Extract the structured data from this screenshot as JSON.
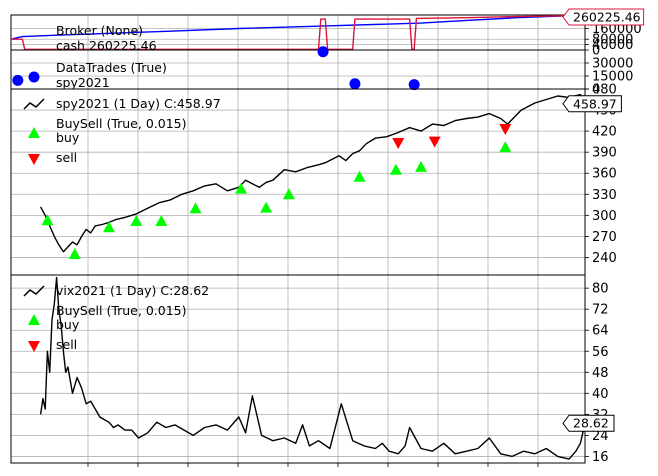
{
  "chart_data": [
    {
      "type": "line",
      "panel": "broker",
      "legend": [
        "Broker (None)",
        "cash 260225.46"
      ],
      "last_value_label": "260225.46",
      "ylim": [
        0,
        260225.46
      ],
      "yticks": [
        0,
        40000,
        80000,
        160000
      ],
      "ytick_labels": [
        "0",
        "40000",
        "80000",
        "160000"
      ],
      "series": [
        {
          "name": "Broker (None)",
          "color": "#0000ff",
          "x": [
            0,
            5,
            20,
            45,
            70,
            100,
            140,
            180,
            200,
            222,
            250,
            252
          ],
          "y": [
            80000,
            100000,
            110000,
            125000,
            140000,
            160000,
            180000,
            200000,
            220000,
            240000,
            258000,
            260225.46
          ]
        },
        {
          "name": "cash 260225.46",
          "color": "#dc143c",
          "x": [
            0,
            5,
            6,
            135,
            136,
            138,
            139,
            150,
            151,
            175,
            176,
            177,
            178,
            200,
            225,
            250,
            252
          ],
          "y": [
            80000,
            80000,
            5000,
            5000,
            230000,
            230000,
            5000,
            5000,
            230000,
            230000,
            5000,
            5000,
            235000,
            240000,
            250000,
            256000,
            260225.46
          ]
        }
      ]
    },
    {
      "type": "scatter",
      "panel": "datatrades",
      "legend": [
        "DataTrades (True)",
        "spy2021"
      ],
      "ylim": [
        0,
        45000
      ],
      "yticks": [
        0,
        15000,
        30000
      ],
      "ytick_labels": [
        "0",
        "15000",
        "30000"
      ],
      "series": [
        {
          "name": "DataTrades (True)",
          "color": "#0000ff",
          "x": [
            3,
            137,
            151,
            177
          ],
          "y": [
            10000,
            43000,
            6000,
            5000
          ]
        }
      ]
    },
    {
      "type": "line",
      "panel": "spy2021",
      "legend": [
        "spy2021 (1 Day) C:458.97",
        "BuySell (True, 0.015)",
        "buy",
        "sell"
      ],
      "last_value_label": "458.97",
      "ylim": [
        215,
        480
      ],
      "yticks": [
        240,
        270,
        300,
        330,
        360,
        390,
        420,
        450,
        480
      ],
      "ytick_labels": [
        "240",
        "270",
        "300",
        "330",
        "360",
        "390",
        "420",
        "450",
        "480"
      ],
      "series": [
        {
          "name": "spy2021 (1 Day) C:458.97",
          "color": "#000000",
          "x": [
            13,
            15,
            17,
            19,
            21,
            23,
            25,
            27,
            29,
            31,
            33,
            35,
            37,
            40,
            43,
            46,
            50,
            55,
            60,
            65,
            70,
            75,
            80,
            85,
            90,
            95,
            100,
            103,
            106,
            109,
            112,
            115,
            120,
            125,
            130,
            135,
            138,
            141,
            144,
            147,
            150,
            153,
            156,
            160,
            165,
            170,
            175,
            180,
            185,
            190,
            195,
            200,
            205,
            210,
            215,
            218,
            221,
            224,
            227,
            230,
            235,
            240,
            245,
            250,
            252
          ],
          "y": [
            312,
            300,
            285,
            270,
            258,
            248,
            255,
            262,
            258,
            270,
            280,
            275,
            285,
            287,
            290,
            294,
            297,
            302,
            310,
            318,
            322,
            330,
            335,
            342,
            345,
            335,
            340,
            350,
            345,
            340,
            347,
            350,
            365,
            362,
            368,
            372,
            375,
            380,
            385,
            378,
            388,
            392,
            402,
            410,
            412,
            418,
            425,
            420,
            430,
            428,
            435,
            438,
            440,
            445,
            438,
            430,
            440,
            450,
            455,
            460,
            465,
            470,
            468,
            472,
            458.97
          ]
        }
      ],
      "buy_markers": {
        "name": "buy",
        "color": "#00ff00",
        "x": [
          16,
          28,
          43,
          55,
          66,
          81,
          101,
          112,
          122,
          153,
          169,
          180,
          217
        ],
        "y": [
          293,
          245,
          283,
          292,
          292,
          310,
          338,
          311,
          330,
          355,
          365,
          369,
          397
        ]
      },
      "sell_markers": {
        "name": "sell",
        "color": "#ff0000",
        "x": [
          170,
          186,
          217
        ],
        "y": [
          403,
          405,
          423
        ]
      }
    },
    {
      "type": "line",
      "panel": "vix2021",
      "legend": [
        "vix2021 (1 Day) C:28.62",
        "BuySell (True, 0.015)",
        "buy",
        "sell"
      ],
      "last_value_label": "28.62",
      "ylim": [
        13.5,
        85
      ],
      "yticks": [
        16,
        24,
        32,
        40,
        48,
        56,
        64,
        72,
        80
      ],
      "ytick_labels": [
        "16",
        "24",
        "32",
        "40",
        "48",
        "56",
        "64",
        "72",
        "80"
      ],
      "series": [
        {
          "name": "vix2021 (1 Day) C:28.62",
          "color": "#000000",
          "x": [
            13,
            14,
            15,
            16,
            17,
            18,
            19,
            20,
            21,
            22,
            23,
            24,
            25,
            27,
            29,
            31,
            33,
            35,
            37,
            39,
            41,
            43,
            45,
            47,
            50,
            53,
            56,
            60,
            64,
            68,
            72,
            76,
            80,
            85,
            90,
            95,
            100,
            103,
            106,
            110,
            115,
            120,
            125,
            128,
            131,
            135,
            140,
            145,
            150,
            155,
            160,
            163,
            166,
            170,
            173,
            175,
            180,
            185,
            190,
            195,
            200,
            205,
            210,
            215,
            220,
            225,
            230,
            235,
            240,
            245,
            248,
            250,
            252
          ],
          "y": [
            32,
            38,
            34,
            56,
            48,
            68,
            74,
            84,
            72,
            66,
            56,
            48,
            50,
            40,
            46,
            42,
            36,
            37,
            34,
            31,
            30,
            29,
            27,
            28,
            26,
            26,
            23,
            25,
            29,
            27,
            28,
            26,
            24,
            27,
            28,
            26,
            31,
            25,
            39,
            24,
            22,
            23,
            21,
            28,
            20,
            22,
            19,
            36,
            22,
            20,
            19,
            21,
            18,
            17,
            20,
            27,
            19,
            18,
            21,
            17,
            18,
            19,
            23,
            17,
            16,
            18,
            17,
            19,
            16,
            15,
            18,
            21,
            28.62
          ]
        }
      ],
      "buy_markers": {
        "name": "buy",
        "color": "#00ff00",
        "x": [],
        "y": []
      },
      "sell_markers": {
        "name": "sell",
        "color": "#ff0000",
        "x": [],
        "y": []
      }
    }
  ]
}
